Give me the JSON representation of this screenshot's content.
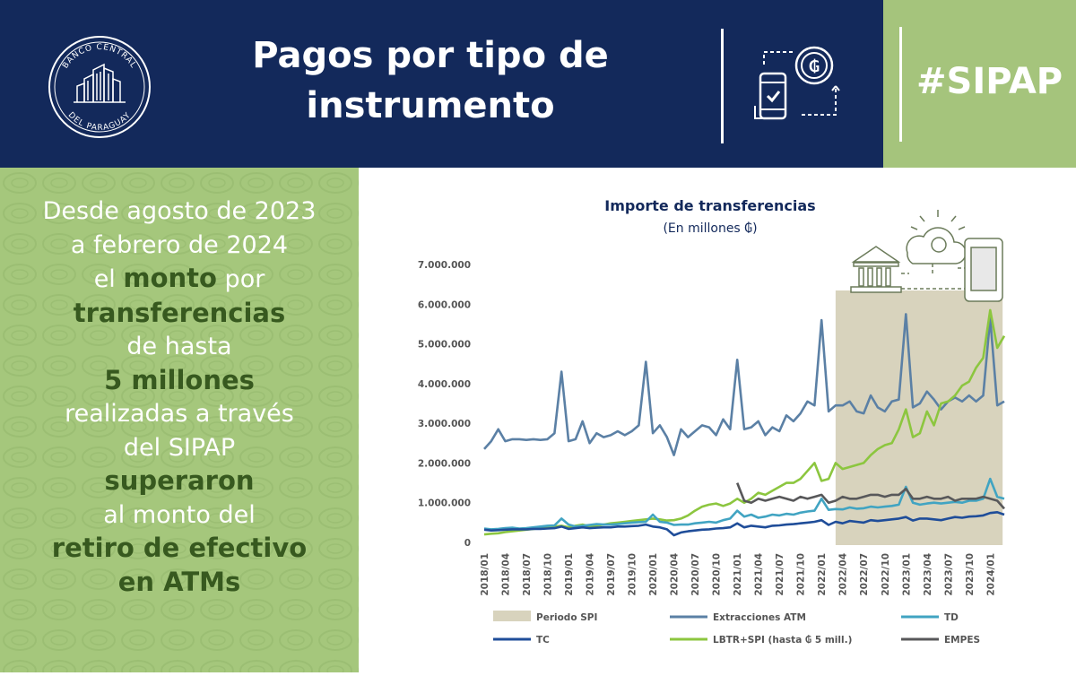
{
  "header": {
    "title_line1": "Pagos por tipo de",
    "title_line2": "instrumento",
    "hashtag": "#SIPAP",
    "logo_text_top": "BANCO CENTRAL",
    "logo_text_bottom": "DEL PARAGUAY",
    "icon": "payment-transfer-icon",
    "colors": {
      "navy": "#13295b",
      "green": "#a5c47c"
    }
  },
  "left_panel": {
    "lines": [
      {
        "text": "Desde agosto de 2023",
        "highlight": false
      },
      {
        "text": "a febrero de 2024",
        "highlight": false
      },
      {
        "pre": "el ",
        "hl": "monto",
        "post": " por",
        "highlight": "mixed"
      },
      {
        "text": "transferencias",
        "highlight": true
      },
      {
        "text": "de hasta",
        "highlight": false
      },
      {
        "text": "5 millones",
        "highlight": true
      },
      {
        "text": "realizadas a través",
        "highlight": false
      },
      {
        "text": "del SIPAP",
        "highlight": false
      },
      {
        "text": "superaron",
        "highlight": true
      },
      {
        "text": "al monto del",
        "highlight": false
      },
      {
        "text": "retiro de efectivo",
        "highlight": true
      },
      {
        "text": "en ATMs",
        "highlight": true
      }
    ],
    "colors": {
      "text": "#ffffff",
      "highlight": "#37591f",
      "background": "#a5c77c"
    }
  },
  "chart_data": {
    "type": "line",
    "title": "Importe de transferencias",
    "subtitle": "(En millones ₲)",
    "x_tick_labels": [
      "2018/01",
      "2018/04",
      "2018/07",
      "2018/10",
      "2019/01",
      "2019/04",
      "2019/07",
      "2019/10",
      "2020/01",
      "2020/04",
      "2020/07",
      "2020/10",
      "2021/01",
      "2021/04",
      "2021/07",
      "2021/10",
      "2022/01",
      "2022/04",
      "2022/07",
      "2022/10",
      "2023/01",
      "2023/04",
      "2023/07",
      "2023/10",
      "2024/01"
    ],
    "y_tick_labels": [
      "0",
      "1.000.000",
      "2.000.000",
      "3.000.000",
      "4.000.000",
      "5.000.000",
      "6.000.000",
      "7.000.000"
    ],
    "ylim": [
      0,
      7000000
    ],
    "x_start": "2018/01",
    "n_months": 75,
    "shaded_region": {
      "name": "Periodo SPI",
      "from": "2022/03",
      "to": "2024/02",
      "color": "#d8d3bd"
    },
    "icons": [
      "bank-icon",
      "cloud-icon",
      "phone-icon"
    ],
    "legend": [
      {
        "name": "Periodo SPI",
        "kind": "area",
        "color": "#d8d3bd"
      },
      {
        "name": "Extracciones ATM",
        "kind": "line",
        "color": "#5b80a5"
      },
      {
        "name": "TD",
        "kind": "line",
        "color": "#41a4c2"
      },
      {
        "name": "TC",
        "kind": "line",
        "color": "#1f4d99"
      },
      {
        "name": "LBTR+SPI (hasta ₲ 5 mill.)",
        "kind": "line",
        "color": "#8cc63f"
      },
      {
        "name": "EMPES",
        "kind": "line",
        "color": "#58585a"
      }
    ],
    "series": [
      {
        "name": "Extracciones ATM",
        "color": "#5b80a5",
        "start_index": 0,
        "values": [
          2350000,
          2550000,
          2850000,
          2550000,
          2600000,
          2600000,
          2580000,
          2600000,
          2580000,
          2600000,
          2750000,
          4300000,
          2550000,
          2600000,
          3050000,
          2500000,
          2750000,
          2650000,
          2700000,
          2800000,
          2700000,
          2800000,
          2950000,
          4550000,
          2750000,
          2950000,
          2650000,
          2200000,
          2850000,
          2650000,
          2800000,
          2950000,
          2900000,
          2700000,
          3100000,
          2850000,
          4600000,
          2850000,
          2900000,
          3050000,
          2700000,
          2900000,
          2800000,
          3200000,
          3050000,
          3250000,
          3550000,
          3450000,
          5600000,
          3300000,
          3450000,
          3450000,
          3550000,
          3300000,
          3250000,
          3700000,
          3400000,
          3300000,
          3550000,
          3600000,
          5750000,
          3400000,
          3500000,
          3800000,
          3600000,
          3350000,
          3550000,
          3650000,
          3550000,
          3700000,
          3550000,
          3700000,
          5650000,
          3450000,
          3550000
        ]
      },
      {
        "name": "LBTR+SPI (hasta ₲ 5 mill.)",
        "color": "#8cc63f",
        "start_index": 0,
        "values": [
          200000,
          220000,
          230000,
          260000,
          280000,
          300000,
          320000,
          340000,
          360000,
          380000,
          400000,
          420000,
          380000,
          420000,
          450000,
          400000,
          420000,
          450000,
          480000,
          500000,
          520000,
          540000,
          560000,
          580000,
          600000,
          580000,
          550000,
          560000,
          600000,
          680000,
          800000,
          900000,
          950000,
          980000,
          920000,
          980000,
          1100000,
          1000000,
          1100000,
          1250000,
          1200000,
          1300000,
          1400000,
          1500000,
          1500000,
          1600000,
          1800000,
          2000000,
          1550000,
          1600000,
          2000000,
          1850000,
          1900000,
          1950000,
          2000000,
          2200000,
          2350000,
          2450000,
          2500000,
          2850000,
          3350000,
          2650000,
          2750000,
          3300000,
          2950000,
          3500000,
          3550000,
          3700000,
          3950000,
          4050000,
          4400000,
          4650000,
          5850000,
          4900000,
          5200000
        ]
      },
      {
        "name": "TD",
        "color": "#41a4c2",
        "start_index": 0,
        "values": [
          350000,
          330000,
          340000,
          360000,
          370000,
          350000,
          360000,
          380000,
          400000,
          420000,
          430000,
          600000,
          450000,
          400000,
          420000,
          440000,
          460000,
          450000,
          450000,
          460000,
          480000,
          500000,
          510000,
          520000,
          700000,
          520000,
          500000,
          440000,
          450000,
          450000,
          480000,
          500000,
          520000,
          500000,
          560000,
          600000,
          800000,
          650000,
          700000,
          620000,
          650000,
          700000,
          680000,
          720000,
          700000,
          750000,
          780000,
          800000,
          1100000,
          820000,
          840000,
          830000,
          880000,
          850000,
          860000,
          900000,
          880000,
          900000,
          920000,
          950000,
          1400000,
          1000000,
          950000,
          980000,
          1000000,
          980000,
          1000000,
          1020000,
          1000000,
          1050000,
          1050000,
          1100000,
          1600000,
          1150000,
          1100000
        ]
      },
      {
        "name": "TC",
        "color": "#1f4d99",
        "start_index": 0,
        "values": [
          320000,
          300000,
          310000,
          320000,
          330000,
          330000,
          330000,
          340000,
          340000,
          350000,
          360000,
          400000,
          340000,
          360000,
          380000,
          360000,
          370000,
          380000,
          380000,
          400000,
          400000,
          410000,
          420000,
          450000,
          400000,
          380000,
          330000,
          180000,
          250000,
          280000,
          300000,
          320000,
          330000,
          350000,
          360000,
          380000,
          480000,
          380000,
          420000,
          400000,
          380000,
          420000,
          430000,
          450000,
          460000,
          480000,
          500000,
          520000,
          560000,
          440000,
          520000,
          480000,
          540000,
          520000,
          500000,
          560000,
          540000,
          560000,
          580000,
          600000,
          640000,
          550000,
          600000,
          600000,
          580000,
          560000,
          600000,
          640000,
          620000,
          650000,
          660000,
          680000,
          740000,
          760000,
          700000
        ]
      },
      {
        "name": "EMPES",
        "color": "#58585a",
        "start_index": 36,
        "values": [
          1500000,
          1050000,
          1000000,
          1100000,
          1050000,
          1100000,
          1150000,
          1100000,
          1050000,
          1150000,
          1100000,
          1150000,
          1200000,
          1000000,
          1050000,
          1150000,
          1100000,
          1100000,
          1150000,
          1200000,
          1200000,
          1150000,
          1200000,
          1200000,
          1350000,
          1100000,
          1100000,
          1150000,
          1100000,
          1100000,
          1150000,
          1050000,
          1100000,
          1100000,
          1100000,
          1150000,
          1100000,
          1050000,
          850000
        ]
      }
    ]
  }
}
